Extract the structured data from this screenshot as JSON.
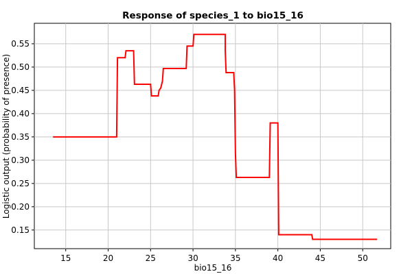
{
  "chart_data": {
    "type": "line",
    "title": "Response of species_1 to bio15_16",
    "xlabel": "bio15_16",
    "ylabel": "Logistic output (probability of presence)",
    "xlim": [
      11.3,
      53.3
    ],
    "ylim": [
      0.11,
      0.594
    ],
    "x_ticks": [
      15,
      20,
      25,
      30,
      35,
      40,
      45,
      50
    ],
    "x_tick_labels": [
      "15",
      "20",
      "25",
      "30",
      "35",
      "40",
      "45",
      "50"
    ],
    "y_ticks": [
      0.15,
      0.2,
      0.25,
      0.3,
      0.35,
      0.4,
      0.45,
      0.5,
      0.55
    ],
    "y_tick_labels": [
      "0.15",
      "0.20",
      "0.25",
      "0.30",
      "0.35",
      "0.40",
      "0.45",
      "0.50",
      "0.55"
    ],
    "grid": true,
    "series": [
      {
        "color": "#ff0000",
        "x": [
          13.5,
          21.0,
          21.1,
          22.0,
          22.1,
          23.0,
          23.1,
          25.0,
          25.1,
          25.9,
          26.0,
          26.2,
          26.4,
          26.5,
          29.2,
          29.3,
          30.0,
          30.1,
          33.8,
          33.8,
          33.9,
          34.0,
          34.8,
          34.9,
          35.0,
          35.1,
          39.0,
          39.1,
          40.0,
          40.1,
          44.0,
          44.1,
          51.7
        ],
        "y": [
          0.35,
          0.35,
          0.52,
          0.52,
          0.535,
          0.535,
          0.463,
          0.463,
          0.438,
          0.438,
          0.45,
          0.455,
          0.47,
          0.497,
          0.497,
          0.545,
          0.545,
          0.57,
          0.57,
          0.535,
          0.488,
          0.488,
          0.488,
          0.45,
          0.315,
          0.263,
          0.263,
          0.38,
          0.38,
          0.14,
          0.14,
          0.13,
          0.13
        ]
      }
    ]
  }
}
